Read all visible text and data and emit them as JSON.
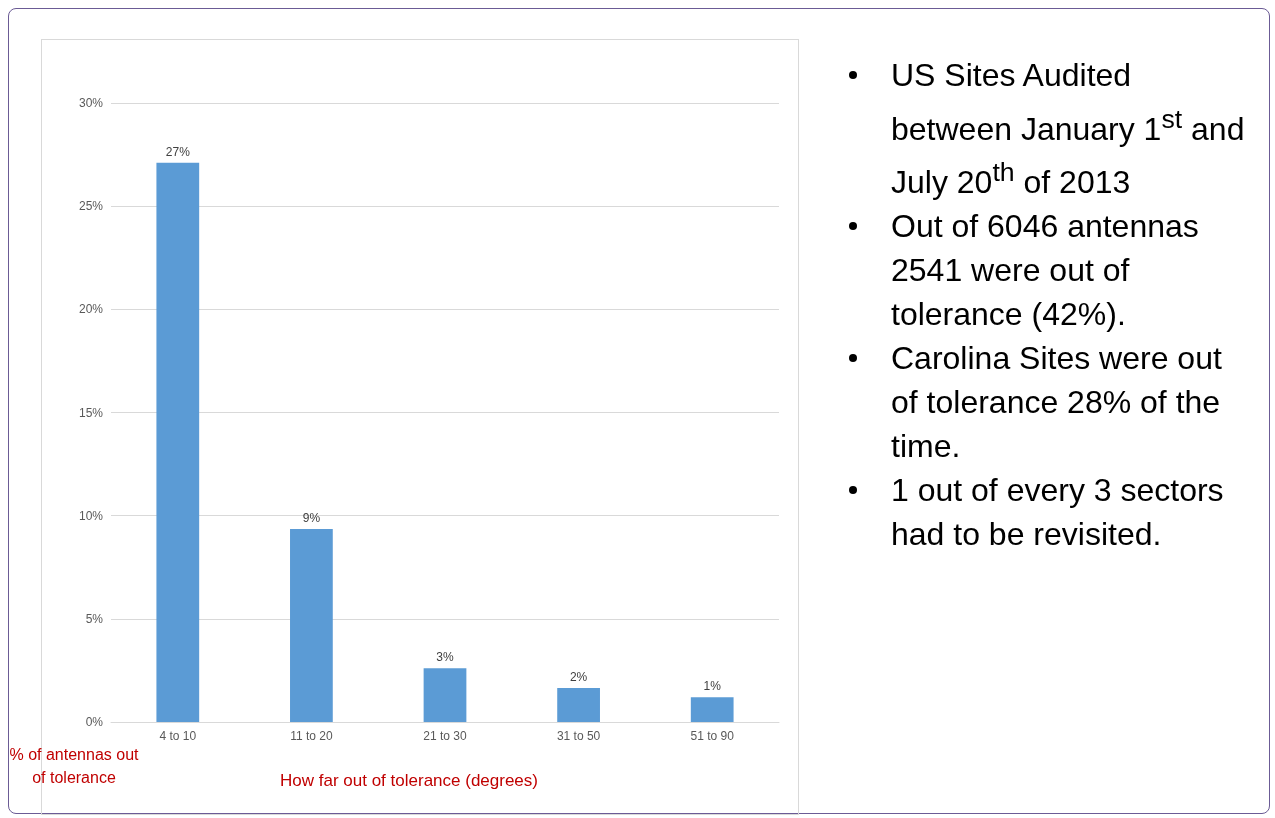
{
  "chart_data": {
    "type": "bar",
    "categories": [
      "4 to 10",
      "11 to 20",
      "21 to 30",
      "31 to 50",
      "51 to 90"
    ],
    "values": [
      27.1,
      9.35,
      2.6,
      1.65,
      1.2
    ],
    "value_labels": [
      "27%",
      "9%",
      "3%",
      "2%",
      "1%"
    ],
    "color": "#5b9bd5",
    "ylim": [
      0,
      30
    ],
    "yticks": [
      {
        "value": 0,
        "label": "0%"
      },
      {
        "value": 5,
        "label": "5%"
      },
      {
        "value": 10,
        "label": "10%"
      },
      {
        "value": 15,
        "label": "15%"
      },
      {
        "value": 20,
        "label": "20%"
      },
      {
        "value": 25,
        "label": "25%"
      },
      {
        "value": 30,
        "label": "30%"
      }
    ],
    "grid": "y",
    "xlabel": "How far out of tolerance (degrees)",
    "ylabel": "% of antennas out of tolerance",
    "annotations": [
      "US Sites Audited between January 1$^{st}$ and July 20$^{th}$ of 2013",
      "Out of 6046 antennas 2541 were out of tolerance (42%).",
      "Carolina Sites were out of tolerance 28% of the time.",
      "1 out of every 3 sectors had to be revisited."
    ]
  }
}
